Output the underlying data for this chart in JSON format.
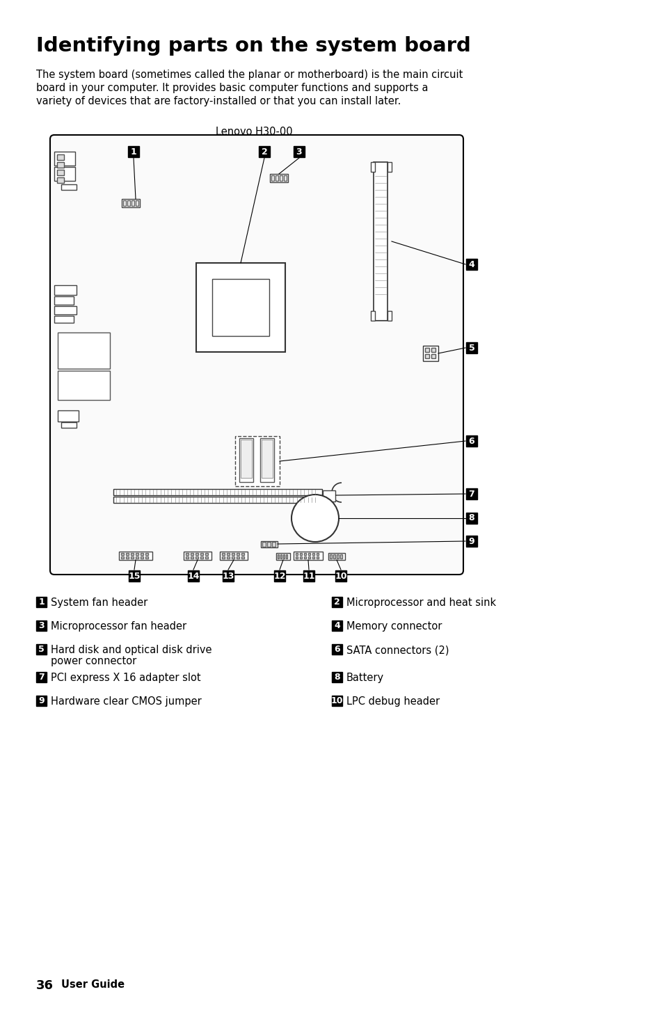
{
  "title": "Identifying parts on the system board",
  "body_lines": [
    "The system board (sometimes called the planar or motherboard) is the main circuit",
    "board in your computer. It provides basic computer functions and supports a",
    "variety of devices that are factory-installed or that you can install later."
  ],
  "subtitle": "Lenovo H30-00",
  "legend_rows": [
    [
      {
        "num": "1",
        "text": "System fan header"
      },
      {
        "num": "2",
        "text": "Microprocessor and heat sink"
      }
    ],
    [
      {
        "num": "3",
        "text": "Microprocessor fan header"
      },
      {
        "num": "4",
        "text": "Memory connector"
      }
    ],
    [
      {
        "num": "5",
        "text": "Hard disk and optical disk drive\npower connector"
      },
      {
        "num": "6",
        "text": "SATA connectors (2)"
      }
    ],
    [
      {
        "num": "7",
        "text": "PCI express X 16 adapter slot"
      },
      {
        "num": "8",
        "text": "Battery"
      }
    ],
    [
      {
        "num": "9",
        "text": "Hardware clear CMOS jumper"
      },
      {
        "num": "10",
        "text": "LPC debug header"
      }
    ]
  ],
  "bg_color": "#ffffff",
  "text_color": "#000000"
}
